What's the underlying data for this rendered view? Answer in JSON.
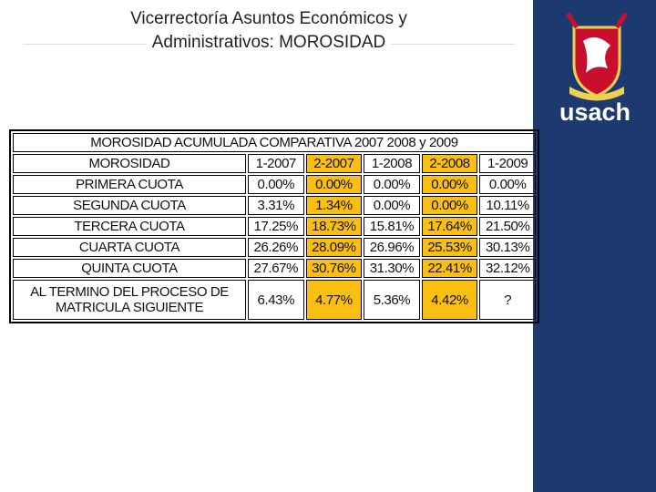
{
  "header": {
    "title_lines": [
      "Vicerrectoría Asuntos Económicos y",
      "Administrativos: MOROSIDAD"
    ],
    "brand": "usach"
  },
  "table": {
    "title": "MOROSIDAD ACUMULADA COMPARATIVA 2007 2008 y 2009",
    "header": [
      "MOROSIDAD",
      "1-2007",
      "2-2007",
      "1-2008",
      "2-2008",
      "1-2009"
    ],
    "rows": [
      [
        "PRIMERA CUOTA",
        "0.00%",
        "0.00%",
        "0.00%",
        "0.00%",
        "0.00%"
      ],
      [
        "SEGUNDA CUOTA",
        "3.31%",
        "1.34%",
        "0.00%",
        "0.00%",
        "10.11%"
      ],
      [
        "TERCERA CUOTA",
        "17.25%",
        "18.73%",
        "15.81%",
        "17.64%",
        "21.50%"
      ],
      [
        "CUARTA CUOTA",
        "26.26%",
        "28.09%",
        "26.96%",
        "25.53%",
        "30.13%"
      ],
      [
        "QUINTA CUOTA",
        "27.67%",
        "30.76%",
        "31.30%",
        "22.41%",
        "32.12%"
      ],
      [
        "AL TERMINO DEL PROCESO DE MATRICULA SIGUIENTE",
        "6.43%",
        "4.77%",
        "5.36%",
        "4.42%",
        "?"
      ]
    ]
  }
}
